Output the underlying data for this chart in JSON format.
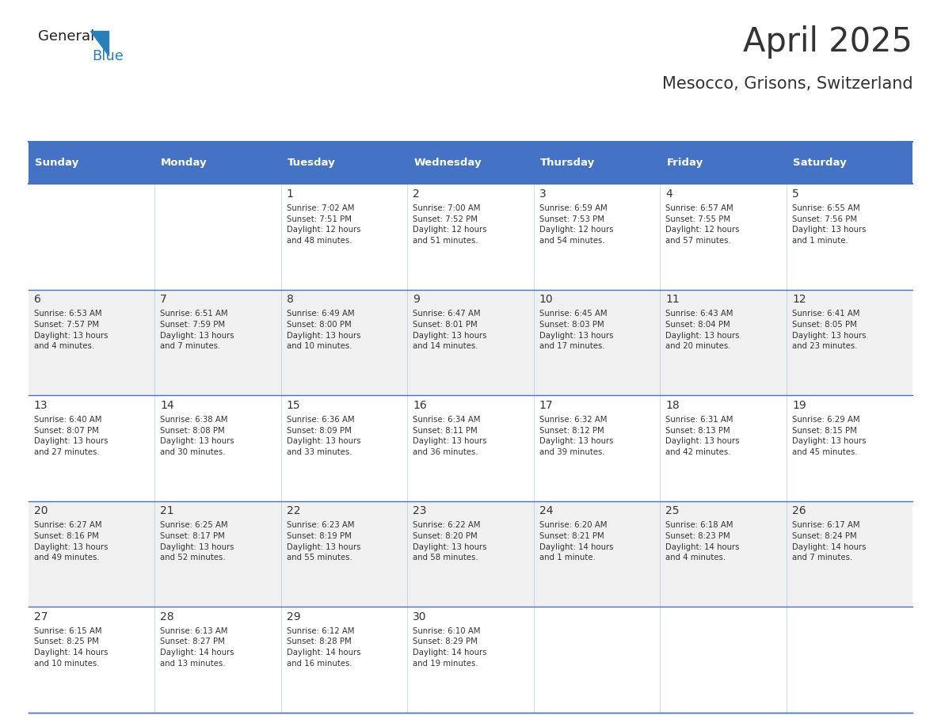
{
  "title": "April 2025",
  "subtitle": "Mesocco, Grisons, Switzerland",
  "header_bg": "#4472C4",
  "header_text": "#FFFFFF",
  "cell_bg_white": "#FFFFFF",
  "cell_bg_light": "#F0F0F0",
  "border_color": "#4472C4",
  "text_color": "#333333",
  "days_of_week": [
    "Sunday",
    "Monday",
    "Tuesday",
    "Wednesday",
    "Thursday",
    "Friday",
    "Saturday"
  ],
  "calendar": [
    [
      {
        "day": "",
        "info": ""
      },
      {
        "day": "",
        "info": ""
      },
      {
        "day": "1",
        "info": "Sunrise: 7:02 AM\nSunset: 7:51 PM\nDaylight: 12 hours\nand 48 minutes."
      },
      {
        "day": "2",
        "info": "Sunrise: 7:00 AM\nSunset: 7:52 PM\nDaylight: 12 hours\nand 51 minutes."
      },
      {
        "day": "3",
        "info": "Sunrise: 6:59 AM\nSunset: 7:53 PM\nDaylight: 12 hours\nand 54 minutes."
      },
      {
        "day": "4",
        "info": "Sunrise: 6:57 AM\nSunset: 7:55 PM\nDaylight: 12 hours\nand 57 minutes."
      },
      {
        "day": "5",
        "info": "Sunrise: 6:55 AM\nSunset: 7:56 PM\nDaylight: 13 hours\nand 1 minute."
      }
    ],
    [
      {
        "day": "6",
        "info": "Sunrise: 6:53 AM\nSunset: 7:57 PM\nDaylight: 13 hours\nand 4 minutes."
      },
      {
        "day": "7",
        "info": "Sunrise: 6:51 AM\nSunset: 7:59 PM\nDaylight: 13 hours\nand 7 minutes."
      },
      {
        "day": "8",
        "info": "Sunrise: 6:49 AM\nSunset: 8:00 PM\nDaylight: 13 hours\nand 10 minutes."
      },
      {
        "day": "9",
        "info": "Sunrise: 6:47 AM\nSunset: 8:01 PM\nDaylight: 13 hours\nand 14 minutes."
      },
      {
        "day": "10",
        "info": "Sunrise: 6:45 AM\nSunset: 8:03 PM\nDaylight: 13 hours\nand 17 minutes."
      },
      {
        "day": "11",
        "info": "Sunrise: 6:43 AM\nSunset: 8:04 PM\nDaylight: 13 hours\nand 20 minutes."
      },
      {
        "day": "12",
        "info": "Sunrise: 6:41 AM\nSunset: 8:05 PM\nDaylight: 13 hours\nand 23 minutes."
      }
    ],
    [
      {
        "day": "13",
        "info": "Sunrise: 6:40 AM\nSunset: 8:07 PM\nDaylight: 13 hours\nand 27 minutes."
      },
      {
        "day": "14",
        "info": "Sunrise: 6:38 AM\nSunset: 8:08 PM\nDaylight: 13 hours\nand 30 minutes."
      },
      {
        "day": "15",
        "info": "Sunrise: 6:36 AM\nSunset: 8:09 PM\nDaylight: 13 hours\nand 33 minutes."
      },
      {
        "day": "16",
        "info": "Sunrise: 6:34 AM\nSunset: 8:11 PM\nDaylight: 13 hours\nand 36 minutes."
      },
      {
        "day": "17",
        "info": "Sunrise: 6:32 AM\nSunset: 8:12 PM\nDaylight: 13 hours\nand 39 minutes."
      },
      {
        "day": "18",
        "info": "Sunrise: 6:31 AM\nSunset: 8:13 PM\nDaylight: 13 hours\nand 42 minutes."
      },
      {
        "day": "19",
        "info": "Sunrise: 6:29 AM\nSunset: 8:15 PM\nDaylight: 13 hours\nand 45 minutes."
      }
    ],
    [
      {
        "day": "20",
        "info": "Sunrise: 6:27 AM\nSunset: 8:16 PM\nDaylight: 13 hours\nand 49 minutes."
      },
      {
        "day": "21",
        "info": "Sunrise: 6:25 AM\nSunset: 8:17 PM\nDaylight: 13 hours\nand 52 minutes."
      },
      {
        "day": "22",
        "info": "Sunrise: 6:23 AM\nSunset: 8:19 PM\nDaylight: 13 hours\nand 55 minutes."
      },
      {
        "day": "23",
        "info": "Sunrise: 6:22 AM\nSunset: 8:20 PM\nDaylight: 13 hours\nand 58 minutes."
      },
      {
        "day": "24",
        "info": "Sunrise: 6:20 AM\nSunset: 8:21 PM\nDaylight: 14 hours\nand 1 minute."
      },
      {
        "day": "25",
        "info": "Sunrise: 6:18 AM\nSunset: 8:23 PM\nDaylight: 14 hours\nand 4 minutes."
      },
      {
        "day": "26",
        "info": "Sunrise: 6:17 AM\nSunset: 8:24 PM\nDaylight: 14 hours\nand 7 minutes."
      }
    ],
    [
      {
        "day": "27",
        "info": "Sunrise: 6:15 AM\nSunset: 8:25 PM\nDaylight: 14 hours\nand 10 minutes."
      },
      {
        "day": "28",
        "info": "Sunrise: 6:13 AM\nSunset: 8:27 PM\nDaylight: 14 hours\nand 13 minutes."
      },
      {
        "day": "29",
        "info": "Sunrise: 6:12 AM\nSunset: 8:28 PM\nDaylight: 14 hours\nand 16 minutes."
      },
      {
        "day": "30",
        "info": "Sunrise: 6:10 AM\nSunset: 8:29 PM\nDaylight: 14 hours\nand 19 minutes."
      },
      {
        "day": "",
        "info": ""
      },
      {
        "day": "",
        "info": ""
      },
      {
        "day": "",
        "info": ""
      }
    ]
  ],
  "logo_text1": "General",
  "logo_text2": "Blue",
  "logo_color1": "#222222",
  "logo_color2": "#2980B9"
}
